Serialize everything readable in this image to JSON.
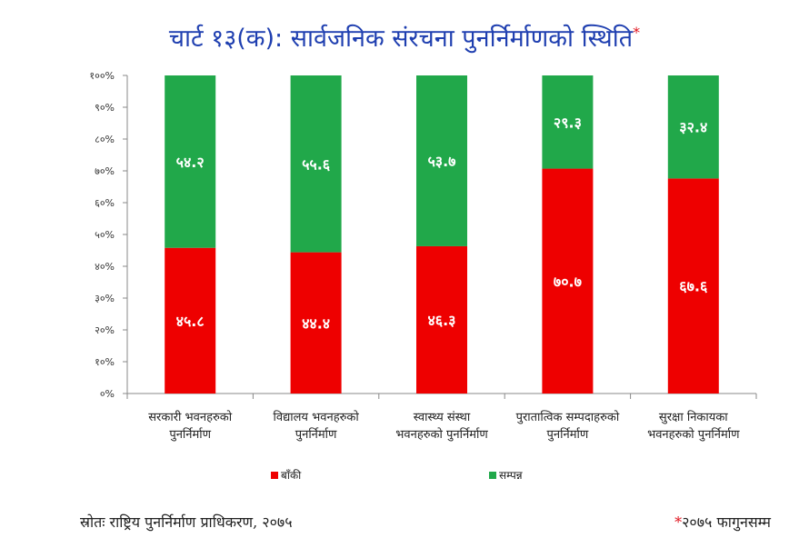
{
  "chart_data": {
    "type": "bar",
    "stacked": true,
    "title": "चार्ट १३(क): सार्वजनिक संरचना पुनर्निर्माणको स्थिति",
    "title_marker": "*",
    "categories": [
      [
        "सरकारी  भवनहरुको",
        "पुनर्निर्माण"
      ],
      [
        "विद्यालय भवनहरुको",
        "पुनर्निर्माण"
      ],
      [
        "स्वास्थ्य संस्था",
        "भवनहरुको पुनर्निर्माण"
      ],
      [
        "पुरातात्विक सम्पदाहरुको",
        "पुनर्निर्माण"
      ],
      [
        "सुरक्षा निकायका",
        "भवनहरुको पुनर्निर्माण"
      ]
    ],
    "series": [
      {
        "name": "बाँकी",
        "color": "#ee0000",
        "values": [
          45.8,
          44.4,
          46.3,
          70.7,
          67.6
        ],
        "labels": [
          "४५.८",
          "४४.४",
          "४६.३",
          "७०.७",
          "६७.६"
        ]
      },
      {
        "name": "सम्पन्न",
        "color": "#21a84a",
        "values": [
          54.2,
          55.6,
          53.7,
          29.3,
          32.4
        ],
        "labels": [
          "५४.२",
          "५५.६",
          "५३.७",
          "२९.३",
          "३२.४"
        ]
      }
    ],
    "ylim": [
      0,
      100
    ],
    "yticks": [
      "०%",
      "१०%",
      "२०%",
      "३०%",
      "४०%",
      "५०%",
      "६०%",
      "७०%",
      "८०%",
      "९०%",
      "१००%"
    ],
    "legend_position": "bottom",
    "grid": false
  },
  "footer": {
    "source": "स्रोतः राष्ट्रिय पुनर्निर्माण प्राधिकरण, २०७५",
    "note_marker": "*",
    "note": "२०७५ फागुनसम्म"
  }
}
